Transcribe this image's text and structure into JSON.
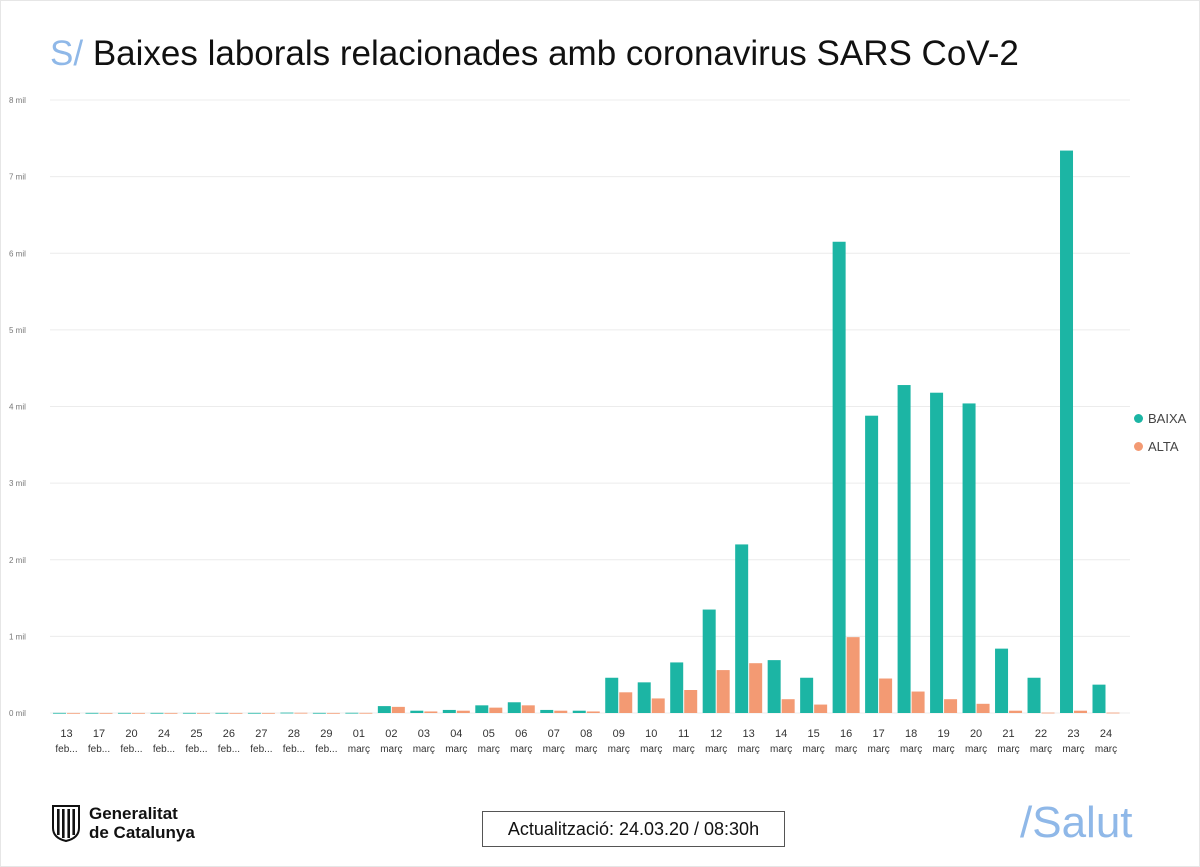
{
  "title": {
    "prefix": "S/",
    "text": "Baixes laborals relacionades amb coronavirus SARS CoV-2"
  },
  "legend": [
    {
      "name": "BAIXA",
      "color": "#1cb5a4"
    },
    {
      "name": "ALTA",
      "color": "#f39a73"
    }
  ],
  "footer": {
    "logo_line1": "Generalitat",
    "logo_line2": "de Catalunya",
    "update": "Actualització: 24.03.20 / 08:30h",
    "brand": "/Salut"
  },
  "chart_data": {
    "type": "bar",
    "categories": [
      [
        "13",
        "feb..."
      ],
      [
        "17",
        "feb..."
      ],
      [
        "20",
        "feb..."
      ],
      [
        "24",
        "feb..."
      ],
      [
        "25",
        "feb..."
      ],
      [
        "26",
        "feb..."
      ],
      [
        "27",
        "feb..."
      ],
      [
        "28",
        "feb..."
      ],
      [
        "29",
        "feb..."
      ],
      [
        "01",
        "març"
      ],
      [
        "02",
        "març"
      ],
      [
        "03",
        "març"
      ],
      [
        "04",
        "març"
      ],
      [
        "05",
        "març"
      ],
      [
        "06",
        "març"
      ],
      [
        "07",
        "març"
      ],
      [
        "08",
        "març"
      ],
      [
        "09",
        "març"
      ],
      [
        "10",
        "març"
      ],
      [
        "11",
        "març"
      ],
      [
        "12",
        "març"
      ],
      [
        "13",
        "març"
      ],
      [
        "14",
        "març"
      ],
      [
        "15",
        "març"
      ],
      [
        "16",
        "març"
      ],
      [
        "17",
        "març"
      ],
      [
        "18",
        "març"
      ],
      [
        "19",
        "març"
      ],
      [
        "20",
        "març"
      ],
      [
        "21",
        "març"
      ],
      [
        "22",
        "març"
      ],
      [
        "23",
        "març"
      ],
      [
        "24",
        "març"
      ]
    ],
    "series": [
      {
        "name": "BAIXA",
        "color": "#1cb5a4",
        "values": [
          2,
          2,
          2,
          2,
          2,
          2,
          2,
          5,
          2,
          3,
          90,
          30,
          40,
          100,
          140,
          40,
          30,
          460,
          400,
          660,
          1350,
          2200,
          690,
          460,
          6150,
          3880,
          4280,
          4180,
          4040,
          840,
          460,
          7340,
          370
        ]
      },
      {
        "name": "ALTA",
        "color": "#f39a73",
        "values": [
          1,
          1,
          1,
          1,
          1,
          1,
          1,
          3,
          1,
          2,
          80,
          20,
          30,
          70,
          100,
          30,
          20,
          270,
          190,
          300,
          560,
          650,
          180,
          110,
          990,
          450,
          280,
          180,
          120,
          30,
          5,
          30,
          5
        ]
      }
    ],
    "yticks": [
      "0 mil",
      "1 mil",
      "2 mil",
      "3 mil",
      "4 mil",
      "5 mil",
      "6 mil",
      "7 mil",
      "8 mil"
    ],
    "ylim": [
      0,
      8000
    ],
    "grid": true,
    "legend_position": "right"
  }
}
